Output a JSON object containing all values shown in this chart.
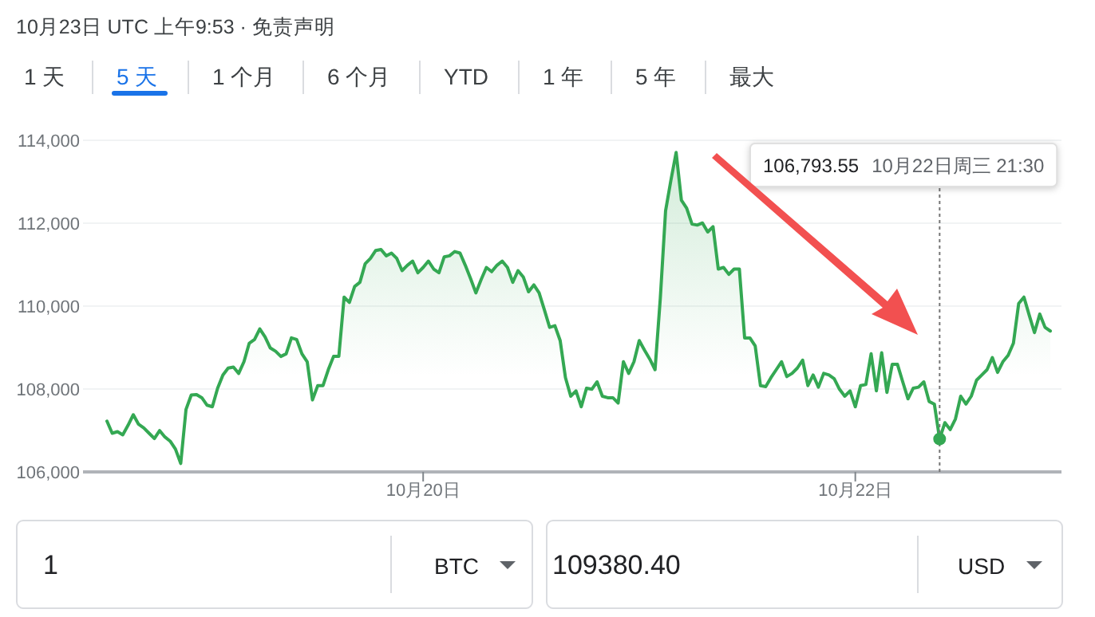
{
  "chart_data": {
    "type": "area",
    "title": "10月23日 UTC 上午9:53 · 免责声明",
    "categories": [
      null,
      null,
      null,
      null,
      null,
      null,
      null,
      null,
      null,
      null,
      null,
      null,
      null,
      null,
      null,
      null,
      null,
      null,
      null,
      null,
      null,
      null,
      null,
      null,
      null,
      null,
      null,
      null,
      null,
      null,
      null,
      null,
      null,
      null,
      null,
      null,
      null,
      null,
      null,
      null,
      null,
      null,
      null,
      null,
      null,
      null,
      null,
      null,
      null,
      null,
      null,
      null,
      null,
      null,
      null,
      null,
      null,
      null,
      null,
      null,
      "10月20日",
      null,
      null,
      null,
      null,
      null,
      null,
      null,
      null,
      null,
      null,
      null,
      null,
      null,
      null,
      null,
      null,
      null,
      null,
      null,
      null,
      null,
      null,
      null,
      null,
      null,
      null,
      null,
      null,
      null,
      null,
      null,
      null,
      null,
      null,
      null,
      null,
      null,
      null,
      null,
      null,
      null,
      null,
      null,
      null,
      null,
      null,
      null,
      null,
      null,
      null,
      null,
      null,
      null,
      null,
      null,
      null,
      null,
      null,
      null,
      null,
      null,
      null,
      null,
      null,
      null,
      null,
      null,
      null,
      null,
      null,
      null,
      null,
      null,
      null,
      null,
      null,
      null,
      null,
      null,
      null,
      null,
      "10月22日",
      null,
      null,
      null,
      null,
      null,
      null,
      null,
      null,
      null,
      null,
      null,
      null,
      null,
      null,
      null,
      null,
      null,
      null,
      null,
      null,
      null,
      null,
      null,
      null,
      null,
      null,
      null,
      null,
      null,
      null,
      null,
      null,
      null,
      null,
      null,
      null,
      null
    ],
    "series": [
      {
        "color": "#34a853",
        "values": [
          107226,
          106933,
          106971,
          106895,
          107124,
          107380,
          107150,
          107061,
          106933,
          106805,
          106997,
          106843,
          106741,
          106550,
          106204,
          107507,
          107855,
          107866,
          107790,
          107610,
          107572,
          108020,
          108338,
          108505,
          108530,
          108377,
          108658,
          109105,
          109195,
          109450,
          109258,
          108990,
          108910,
          108786,
          108848,
          109233,
          109195,
          108848,
          108658,
          107738,
          108083,
          108083,
          108466,
          108786,
          108786,
          110217,
          110090,
          110473,
          110575,
          111022,
          111150,
          111342,
          111367,
          111214,
          111278,
          111150,
          110856,
          110984,
          111086,
          110805,
          110933,
          111086,
          110894,
          110805,
          111188,
          111214,
          111316,
          111278,
          110984,
          110664,
          110319,
          110639,
          110933,
          110831,
          110984,
          111086,
          110933,
          110575,
          110856,
          110703,
          110345,
          110511,
          110319,
          109910,
          109488,
          109527,
          109169,
          108275,
          107827,
          107955,
          107572,
          108020,
          107994,
          108173,
          107827,
          107790,
          107790,
          107661,
          108658,
          108377,
          108658,
          109169,
          108939,
          108722,
          108466,
          110192,
          112300,
          113029,
          113706,
          112556,
          112364,
          111981,
          111955,
          112006,
          111789,
          111917,
          110894,
          110933,
          110767,
          110894,
          110894,
          109233,
          109233,
          109041,
          108083,
          108058,
          108275,
          108466,
          108658,
          108300,
          108377,
          108505,
          108697,
          108083,
          108338,
          108045,
          108377,
          108338,
          108249,
          107994,
          107827,
          107955,
          107572,
          108083,
          108109,
          108850,
          107955,
          108876,
          107917,
          108594,
          108594,
          108173,
          107763,
          108020,
          108045,
          108173,
          107700,
          107636,
          106794,
          107188,
          107022,
          107278,
          107827,
          107636,
          107827,
          108211,
          108338,
          108466,
          108760,
          108402,
          108658,
          108812,
          109105,
          110064,
          110217,
          109782,
          109360,
          109808,
          109488,
          109399
        ]
      }
    ],
    "ylim": [
      106000,
      114000
    ],
    "yticks": [
      {
        "value": 106000,
        "label": "106,000"
      },
      {
        "value": 108000,
        "label": "108,000"
      },
      {
        "value": 110000,
        "label": "110,000"
      },
      {
        "value": 112000,
        "label": "112,000"
      },
      {
        "value": 114000,
        "label": "114,000"
      }
    ],
    "grid": "y",
    "annotations": [
      "1 天",
      "5 天",
      "1 个月",
      "6 个月",
      "YTD",
      "1 年",
      "5 年",
      "最大",
      "106,793.55",
      "10月22日周三 21:30",
      "1",
      "BTC",
      "109380.40",
      "USD"
    ]
  }
}
